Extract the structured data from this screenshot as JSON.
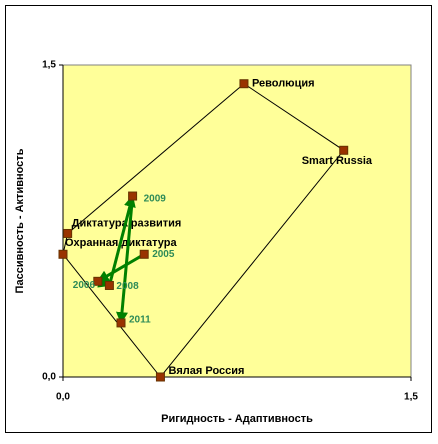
{
  "chart_data": {
    "type": "scatter",
    "x_label": "Ригидность - Адаптивность",
    "y_label": "Пассивность - Активность",
    "xlim": [
      0,
      1.5
    ],
    "ylim": [
      0,
      1.5
    ],
    "xticks": [
      {
        "value": 0,
        "label": "0,0"
      },
      {
        "value": 1.5,
        "label": "1,5"
      }
    ],
    "yticks": [
      {
        "value": 0,
        "label": "0,0"
      },
      {
        "value": 1.5,
        "label": "1,5"
      }
    ],
    "plot_background": "#ffff99",
    "series": [
      {
        "color": "#000000",
        "marker_color": "#993300",
        "closed": true,
        "labels": [
          "Революция",
          "Smart Russia",
          "Вялая Россия",
          "Охранная диктатура",
          "Диктатура развития"
        ],
        "x": [
          0.78,
          1.21,
          0.42,
          0.0,
          0.02
        ],
        "values": [
          1.41,
          1.09,
          0.0,
          0.59,
          0.69
        ]
      },
      {
        "color": "#008000",
        "marker_color": "#993300",
        "label_color": "#2e8b57",
        "arrows": true,
        "labels": [
          "2005",
          "2006",
          "2008",
          "2009",
          "2011"
        ],
        "x": [
          0.35,
          0.15,
          0.2,
          0.3,
          0.25
        ],
        "values": [
          0.59,
          0.46,
          0.44,
          0.87,
          0.26
        ]
      }
    ]
  }
}
